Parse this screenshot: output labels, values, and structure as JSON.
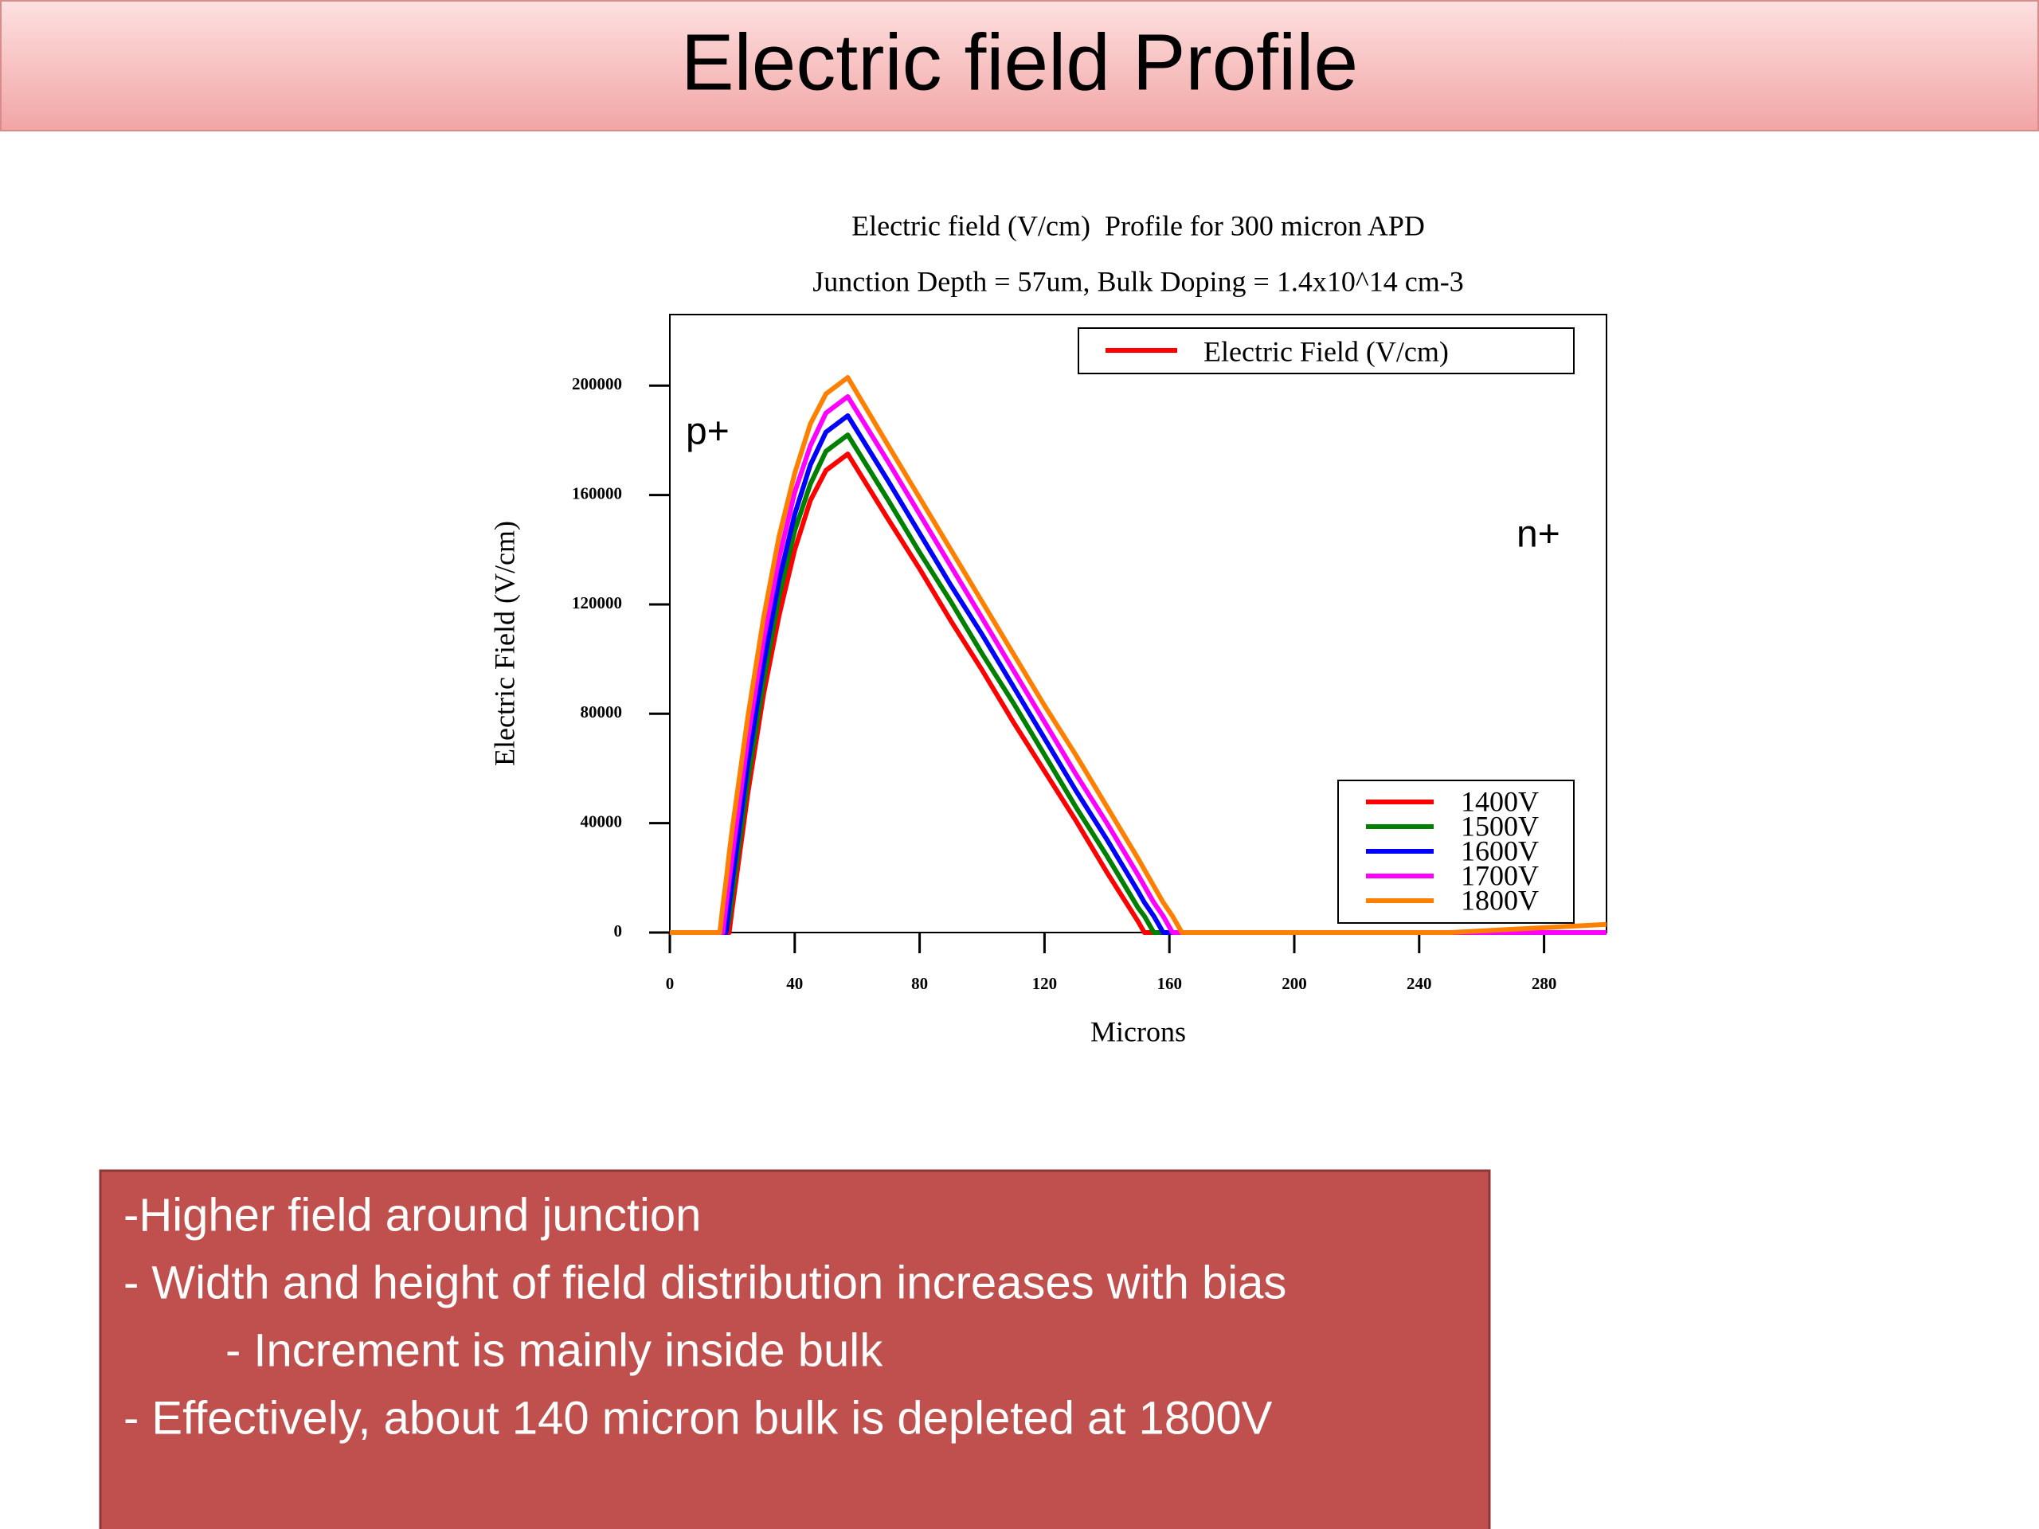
{
  "header": {
    "title": "Electric field Profile"
  },
  "chart_data": {
    "type": "line",
    "title": "Electric field (V/cm)  Profile for 300 micron APD",
    "subtitle": "Junction Depth = 57um, Bulk Doping = 1.4x10^14 cm-3",
    "x_label": "Microns",
    "y_label": "Electric Field (V/cm)",
    "quantity_legend": {
      "label": "Electric Field (V/cm)",
      "color": "#ff0000"
    },
    "annotations": [
      "p+",
      "n+"
    ],
    "x": [
      0,
      15,
      16,
      17,
      18,
      19,
      20,
      25,
      30,
      35,
      40,
      45,
      50,
      57,
      70,
      80,
      90,
      100,
      110,
      120,
      130,
      140,
      150,
      152,
      155,
      158,
      161,
      164,
      170,
      200,
      250,
      300
    ],
    "series": [
      {
        "name": "1400V",
        "color": "#ff0000",
        "values": [
          0,
          0,
          0,
          0,
          0,
          0,
          9000,
          51000,
          87000,
          116000,
          140000,
          158000,
          169000,
          175000,
          151000,
          133000,
          114000,
          96000,
          77000,
          59000,
          41000,
          22000,
          4000,
          0,
          0,
          0,
          0,
          0,
          0,
          0,
          0,
          0
        ]
      },
      {
        "name": "1500V",
        "color": "#008000",
        "values": [
          0,
          0,
          0,
          0,
          0,
          5000,
          14000,
          56000,
          92000,
          123000,
          147000,
          164000,
          176000,
          182000,
          158000,
          139000,
          121000,
          102000,
          84000,
          65000,
          46000,
          28000,
          9000,
          6000,
          0,
          0,
          0,
          0,
          0,
          0,
          0,
          0
        ]
      },
      {
        "name": "1600V",
        "color": "#0000ff",
        "values": [
          0,
          0,
          0,
          0,
          0,
          10000,
          19000,
          62000,
          98000,
          129000,
          153000,
          171000,
          183000,
          189000,
          165000,
          146000,
          127000,
          109000,
          90000,
          71000,
          52000,
          34000,
          15000,
          11000,
          6000,
          0,
          0,
          0,
          0,
          0,
          0,
          0
        ]
      },
      {
        "name": "1700V",
        "color": "#ff00ff",
        "values": [
          0,
          0,
          0,
          0,
          10000,
          19000,
          28000,
          71000,
          107000,
          137000,
          161000,
          178000,
          190000,
          196000,
          172000,
          153000,
          134000,
          115000,
          96000,
          77000,
          58000,
          40000,
          21000,
          17000,
          11000,
          6000,
          0,
          0,
          0,
          0,
          0,
          0
        ]
      },
      {
        "name": "1800V",
        "color": "#ff7f00",
        "values": [
          0,
          0,
          0,
          10000,
          19000,
          29000,
          38000,
          79000,
          115000,
          145000,
          168000,
          186000,
          197000,
          203000,
          178000,
          159000,
          140000,
          121000,
          102000,
          83000,
          65000,
          46000,
          27000,
          23000,
          17000,
          11000,
          6000,
          0,
          0,
          0,
          0,
          3000
        ]
      }
    ],
    "xlim": [
      0,
      300
    ],
    "xticks": [
      0,
      40,
      80,
      120,
      160,
      200,
      240,
      280
    ],
    "ylim": [
      0,
      226000
    ],
    "yticks": [
      0,
      40000,
      80000,
      120000,
      160000,
      200000
    ],
    "grid": false
  },
  "notes": {
    "lines": [
      "-Higher field around junction",
      "- Width and height of field distribution increases with bias",
      "- Increment is mainly inside bulk",
      "- Effectively, about 140 micron bulk is depleted at 1800V"
    ]
  }
}
